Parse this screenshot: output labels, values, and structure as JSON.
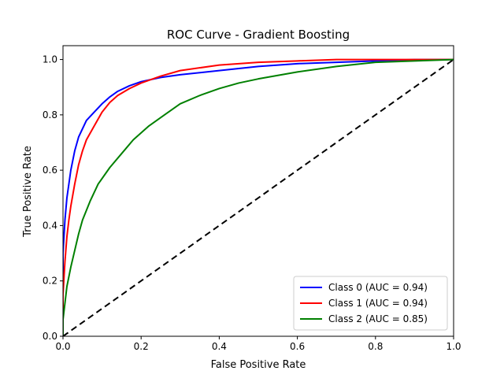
{
  "chart_data": {
    "type": "line",
    "title": "ROC Curve - Gradient Boosting",
    "xlabel": "False Positive Rate",
    "ylabel": "True Positive Rate",
    "xlim": [
      0.0,
      1.0
    ],
    "ylim": [
      0.0,
      1.05
    ],
    "xticks": [
      "0.0",
      "0.2",
      "0.4",
      "0.6",
      "0.8",
      "1.0"
    ],
    "yticks": [
      "0.0",
      "0.2",
      "0.4",
      "0.6",
      "0.8",
      "1.0"
    ],
    "grid": false,
    "legend_position": "lower-right",
    "series": [
      {
        "name": "Class 0 (AUC = 0.94)",
        "color": "#0000ff",
        "style": "solid",
        "x": [
          0,
          0,
          0.005,
          0.01,
          0.015,
          0.02,
          0.03,
          0.04,
          0.05,
          0.06,
          0.08,
          0.1,
          0.12,
          0.14,
          0.17,
          0.2,
          0.25,
          0.3,
          0.4,
          0.5,
          0.6,
          0.7,
          0.8,
          0.9,
          1.0
        ],
        "y": [
          0,
          0.3,
          0.42,
          0.5,
          0.55,
          0.6,
          0.67,
          0.72,
          0.75,
          0.78,
          0.81,
          0.84,
          0.865,
          0.885,
          0.905,
          0.92,
          0.935,
          0.945,
          0.96,
          0.975,
          0.985,
          0.99,
          0.995,
          1.0,
          1.0
        ]
      },
      {
        "name": "Class 1 (AUC = 0.94)",
        "color": "#ff0000",
        "style": "solid",
        "x": [
          0,
          0,
          0.005,
          0.01,
          0.015,
          0.02,
          0.03,
          0.04,
          0.05,
          0.06,
          0.08,
          0.1,
          0.12,
          0.14,
          0.17,
          0.2,
          0.25,
          0.3,
          0.4,
          0.5,
          0.6,
          0.7,
          0.8,
          0.9,
          1.0
        ],
        "y": [
          0,
          0.15,
          0.27,
          0.36,
          0.42,
          0.47,
          0.55,
          0.62,
          0.67,
          0.71,
          0.76,
          0.81,
          0.845,
          0.87,
          0.895,
          0.915,
          0.94,
          0.96,
          0.98,
          0.99,
          0.995,
          1.0,
          1.0,
          1.0,
          1.0
        ]
      },
      {
        "name": "Class 2 (AUC = 0.85)",
        "color": "#008000",
        "style": "solid",
        "x": [
          0,
          0,
          0.005,
          0.01,
          0.02,
          0.03,
          0.04,
          0.05,
          0.07,
          0.09,
          0.12,
          0.15,
          0.18,
          0.22,
          0.26,
          0.3,
          0.35,
          0.4,
          0.45,
          0.5,
          0.6,
          0.7,
          0.8,
          0.9,
          1.0
        ],
        "y": [
          0,
          0.06,
          0.12,
          0.18,
          0.25,
          0.31,
          0.37,
          0.42,
          0.49,
          0.55,
          0.61,
          0.66,
          0.71,
          0.76,
          0.8,
          0.84,
          0.87,
          0.895,
          0.915,
          0.93,
          0.955,
          0.975,
          0.99,
          0.995,
          1.0
        ]
      },
      {
        "name": "",
        "color": "#000000",
        "style": "dashed",
        "x": [
          0,
          1
        ],
        "y": [
          0,
          1
        ]
      }
    ]
  }
}
